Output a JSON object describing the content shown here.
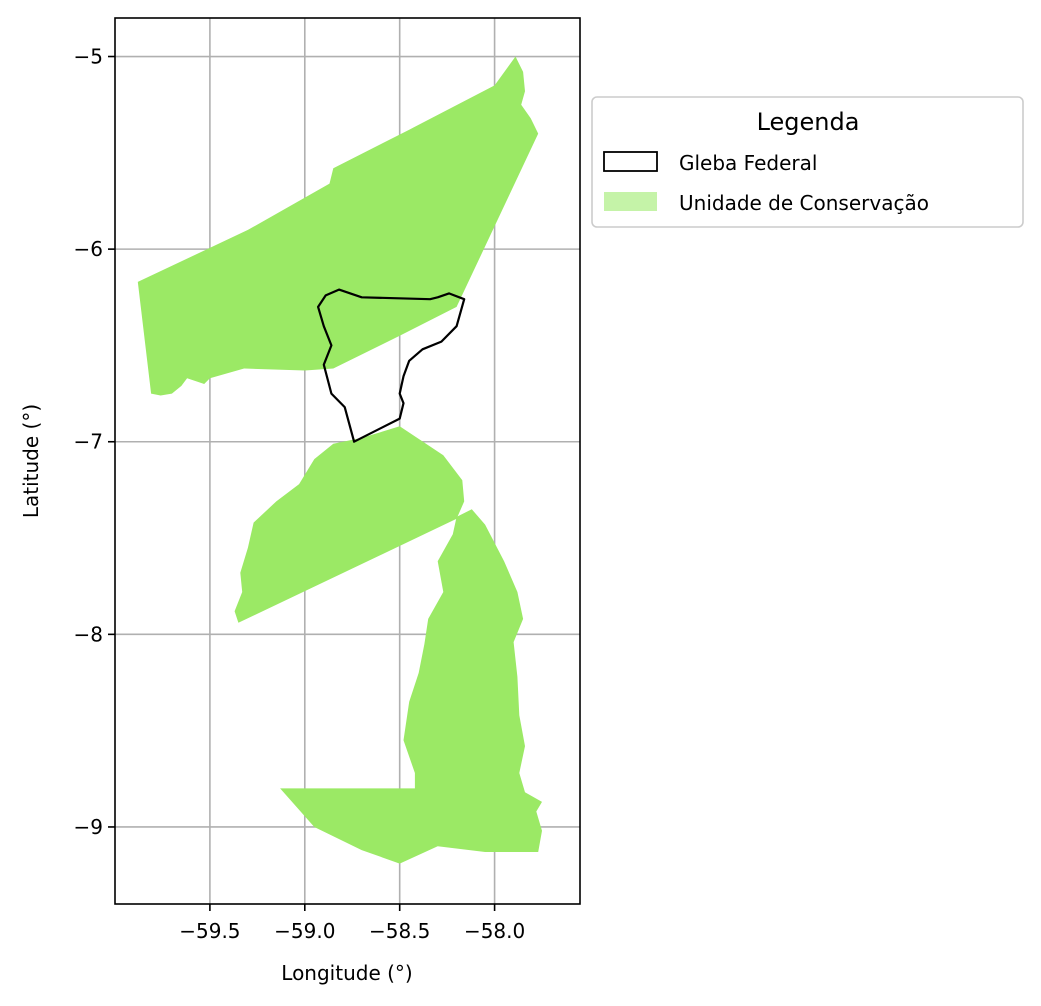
{
  "chart_data": {
    "type": "map",
    "xlabel": "Longitude (°)",
    "ylabel": "Latitude (°)",
    "xlim": [
      -60.0,
      -57.55
    ],
    "ylim": [
      -9.4,
      -4.8
    ],
    "xticks": [
      -59.5,
      -59.0,
      -58.5,
      -58.0
    ],
    "yticks": [
      -5,
      -6,
      -7,
      -8,
      -9
    ],
    "xtick_labels": [
      "−59.5",
      "−59.0",
      "−58.5",
      "−58.0"
    ],
    "ytick_labels": [
      "−5",
      "−6",
      "−7",
      "−8",
      "−9"
    ],
    "grid": true,
    "legend": {
      "title": "Legenda",
      "placement": "outside-top-right",
      "entries": [
        {
          "label": "Gleba Federal",
          "style": "outline",
          "color": "#000000"
        },
        {
          "label": "Unidade de Conservação",
          "style": "fill",
          "color": "#c5f3a8"
        }
      ]
    },
    "colors": {
      "uc_fill": "#9be965",
      "gleba_edge": "#000000",
      "grid": "#b0b0b0"
    },
    "layers": [
      {
        "name": "Unidade de Conservação",
        "color": "#9be965",
        "polygons": [
          [
            [
              -59.88,
              -6.17
            ],
            [
              -59.3,
              -5.9
            ],
            [
              -58.87,
              -5.66
            ],
            [
              -58.85,
              -5.58
            ],
            [
              -58.45,
              -5.38
            ],
            [
              -58.0,
              -5.15
            ],
            [
              -57.89,
              -5.0
            ],
            [
              -57.85,
              -5.08
            ],
            [
              -57.84,
              -5.18
            ],
            [
              -57.86,
              -5.25
            ],
            [
              -57.81,
              -5.32
            ],
            [
              -57.77,
              -5.4
            ],
            [
              -58.2,
              -6.3
            ],
            [
              -58.5,
              -6.45
            ],
            [
              -58.85,
              -6.62
            ],
            [
              -59.0,
              -6.63
            ],
            [
              -59.32,
              -6.62
            ],
            [
              -59.5,
              -6.67
            ],
            [
              -59.53,
              -6.7
            ],
            [
              -59.62,
              -6.67
            ],
            [
              -59.65,
              -6.71
            ],
            [
              -59.7,
              -6.75
            ],
            [
              -59.76,
              -6.76
            ],
            [
              -59.81,
              -6.75
            ]
          ],
          [
            [
              -59.35,
              -7.94
            ],
            [
              -59.37,
              -7.88
            ],
            [
              -59.33,
              -7.78
            ],
            [
              -59.34,
              -7.68
            ],
            [
              -59.3,
              -7.55
            ],
            [
              -59.27,
              -7.42
            ],
            [
              -59.15,
              -7.31
            ],
            [
              -59.03,
              -7.22
            ],
            [
              -58.95,
              -7.09
            ],
            [
              -58.85,
              -7.01
            ],
            [
              -58.7,
              -6.98
            ],
            [
              -58.5,
              -6.92
            ],
            [
              -58.27,
              -7.07
            ],
            [
              -58.17,
              -7.2
            ],
            [
              -58.16,
              -7.31
            ],
            [
              -58.2,
              -7.4
            ]
          ],
          [
            [
              -58.2,
              -7.39
            ],
            [
              -58.12,
              -7.35
            ],
            [
              -58.05,
              -7.43
            ],
            [
              -57.95,
              -7.62
            ],
            [
              -57.88,
              -7.78
            ],
            [
              -57.85,
              -7.92
            ],
            [
              -57.9,
              -8.04
            ],
            [
              -57.88,
              -8.22
            ],
            [
              -57.87,
              -8.42
            ],
            [
              -57.84,
              -8.58
            ],
            [
              -57.87,
              -8.72
            ],
            [
              -57.84,
              -8.82
            ],
            [
              -57.75,
              -8.87
            ],
            [
              -57.78,
              -8.92
            ],
            [
              -57.75,
              -9.02
            ],
            [
              -57.77,
              -9.13
            ],
            [
              -58.05,
              -9.13
            ],
            [
              -58.3,
              -9.1
            ],
            [
              -58.5,
              -9.19
            ],
            [
              -58.7,
              -9.12
            ],
            [
              -58.95,
              -9.0
            ],
            [
              -59.13,
              -8.8
            ],
            [
              -58.42,
              -8.8
            ],
            [
              -58.42,
              -8.72
            ],
            [
              -58.48,
              -8.55
            ],
            [
              -58.45,
              -8.35
            ],
            [
              -58.4,
              -8.2
            ],
            [
              -58.37,
              -8.05
            ],
            [
              -58.35,
              -7.92
            ],
            [
              -58.27,
              -7.78
            ],
            [
              -58.3,
              -7.62
            ],
            [
              -58.22,
              -7.48
            ]
          ]
        ]
      },
      {
        "name": "Gleba Federal",
        "color": "#000000",
        "polygons": [
          [
            [
              -58.89,
              -6.24
            ],
            [
              -58.82,
              -6.21
            ],
            [
              -58.7,
              -6.25
            ],
            [
              -58.34,
              -6.26
            ],
            [
              -58.3,
              -6.25
            ],
            [
              -58.24,
              -6.23
            ],
            [
              -58.16,
              -6.26
            ],
            [
              -58.2,
              -6.4
            ],
            [
              -58.28,
              -6.48
            ],
            [
              -58.38,
              -6.52
            ],
            [
              -58.45,
              -6.58
            ],
            [
              -58.48,
              -6.66
            ],
            [
              -58.5,
              -6.75
            ],
            [
              -58.48,
              -6.8
            ],
            [
              -58.5,
              -6.88
            ],
            [
              -58.74,
              -7.0
            ],
            [
              -58.79,
              -6.82
            ],
            [
              -58.86,
              -6.75
            ],
            [
              -58.9,
              -6.6
            ],
            [
              -58.86,
              -6.5
            ],
            [
              -58.9,
              -6.4
            ],
            [
              -58.93,
              -6.3
            ]
          ]
        ]
      }
    ]
  }
}
